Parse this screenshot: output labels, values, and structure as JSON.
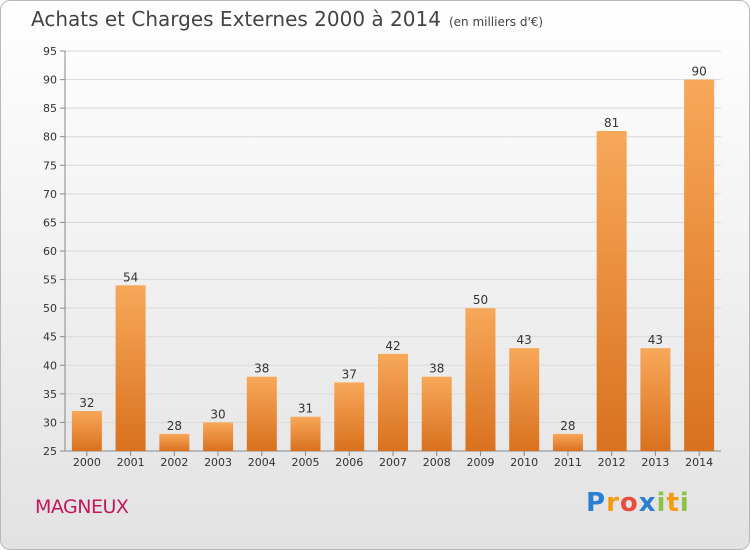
{
  "title": "Achats et Charges Externes 2000 à 2014",
  "subtitle": "(en milliers d'€)",
  "commune": "MAGNEUX",
  "brand": {
    "letters": [
      "P",
      "r",
      "o",
      "x",
      "i",
      "t",
      "i"
    ],
    "colors": [
      "#2a7fd4",
      "#f39c12",
      "#e74c3c",
      "#2a7fd4",
      "#8bc34a",
      "#f39c12",
      "#8bc34a"
    ]
  },
  "colors": {
    "bar_top": "#f7a859",
    "bar_bottom": "#d9711e",
    "grid": "#d9d9d9",
    "commune": "#c2185b"
  },
  "chart_data": {
    "type": "bar",
    "categories": [
      "2000",
      "2001",
      "2002",
      "2003",
      "2004",
      "2005",
      "2006",
      "2007",
      "2008",
      "2009",
      "2010",
      "2011",
      "2012",
      "2013",
      "2014"
    ],
    "values": [
      32,
      54,
      28,
      30,
      38,
      31,
      37,
      42,
      38,
      50,
      43,
      28,
      81,
      43,
      90
    ],
    "ylim": [
      25,
      95
    ],
    "yticks": [
      25,
      30,
      35,
      40,
      45,
      50,
      55,
      60,
      65,
      70,
      75,
      80,
      85,
      90,
      95
    ],
    "grid": true,
    "data_labels": true
  }
}
